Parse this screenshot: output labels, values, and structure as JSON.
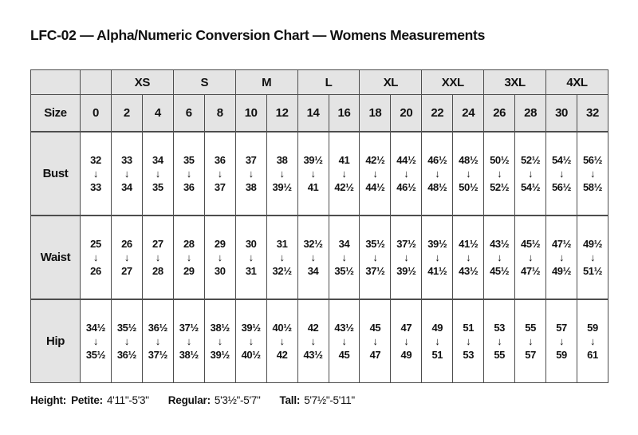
{
  "title": "LFC-02 — Alpha/Numeric Conversion Chart — Womens Measurements",
  "colors": {
    "header_bg": "#e4e4e4",
    "cell_bg": "#ffffff",
    "border": "#4d4d4d",
    "text": "#111111"
  },
  "table": {
    "corner_label": "",
    "arrow_icon": "↓",
    "alpha_groups": [
      {
        "label": "",
        "span": 1
      },
      {
        "label": "XS",
        "span": 2
      },
      {
        "label": "S",
        "span": 2
      },
      {
        "label": "M",
        "span": 2
      },
      {
        "label": "L",
        "span": 2
      },
      {
        "label": "XL",
        "span": 2
      },
      {
        "label": "XXL",
        "span": 2
      },
      {
        "label": "3XL",
        "span": 2
      },
      {
        "label": "4XL",
        "span": 2
      }
    ],
    "size_row_label": "Size",
    "sizes": [
      "0",
      "2",
      "4",
      "6",
      "8",
      "10",
      "12",
      "14",
      "16",
      "18",
      "20",
      "22",
      "24",
      "26",
      "28",
      "30",
      "32"
    ],
    "measurement_rows": [
      {
        "label": "Bust",
        "ranges": [
          [
            "32",
            "33"
          ],
          [
            "33",
            "34"
          ],
          [
            "34",
            "35"
          ],
          [
            "35",
            "36"
          ],
          [
            "36",
            "37"
          ],
          [
            "37",
            "38"
          ],
          [
            "38",
            "39½"
          ],
          [
            "39½",
            "41"
          ],
          [
            "41",
            "42½"
          ],
          [
            "42½",
            "44½"
          ],
          [
            "44½",
            "46½"
          ],
          [
            "46½",
            "48½"
          ],
          [
            "48½",
            "50½"
          ],
          [
            "50½",
            "52½"
          ],
          [
            "52½",
            "54½"
          ],
          [
            "54½",
            "56½"
          ],
          [
            "56½",
            "58½"
          ]
        ]
      },
      {
        "label": "Waist",
        "ranges": [
          [
            "25",
            "26"
          ],
          [
            "26",
            "27"
          ],
          [
            "27",
            "28"
          ],
          [
            "28",
            "29"
          ],
          [
            "29",
            "30"
          ],
          [
            "30",
            "31"
          ],
          [
            "31",
            "32½"
          ],
          [
            "32½",
            "34"
          ],
          [
            "34",
            "35½"
          ],
          [
            "35½",
            "37½"
          ],
          [
            "37½",
            "39½"
          ],
          [
            "39½",
            "41½"
          ],
          [
            "41½",
            "43½"
          ],
          [
            "43½",
            "45½"
          ],
          [
            "45½",
            "47½"
          ],
          [
            "47½",
            "49½"
          ],
          [
            "49½",
            "51½"
          ]
        ]
      },
      {
        "label": "Hip",
        "ranges": [
          [
            "34½",
            "35½"
          ],
          [
            "35½",
            "36½"
          ],
          [
            "36½",
            "37½"
          ],
          [
            "37½",
            "38½"
          ],
          [
            "38½",
            "39½"
          ],
          [
            "39½",
            "40½"
          ],
          [
            "40½",
            "42"
          ],
          [
            "42",
            "43½"
          ],
          [
            "43½",
            "45"
          ],
          [
            "45",
            "47"
          ],
          [
            "47",
            "49"
          ],
          [
            "49",
            "51"
          ],
          [
            "51",
            "53"
          ],
          [
            "53",
            "55"
          ],
          [
            "55",
            "57"
          ],
          [
            "57",
            "59"
          ],
          [
            "59",
            "61"
          ]
        ]
      }
    ]
  },
  "footer": {
    "prefix": "Height:",
    "items": [
      {
        "label": "Petite:",
        "range": "4'11\"-5'3\""
      },
      {
        "label": "Regular:",
        "range": "5'3½\"-5'7\""
      },
      {
        "label": "Tall:",
        "range": "5'7½\"-5'11\""
      }
    ]
  }
}
